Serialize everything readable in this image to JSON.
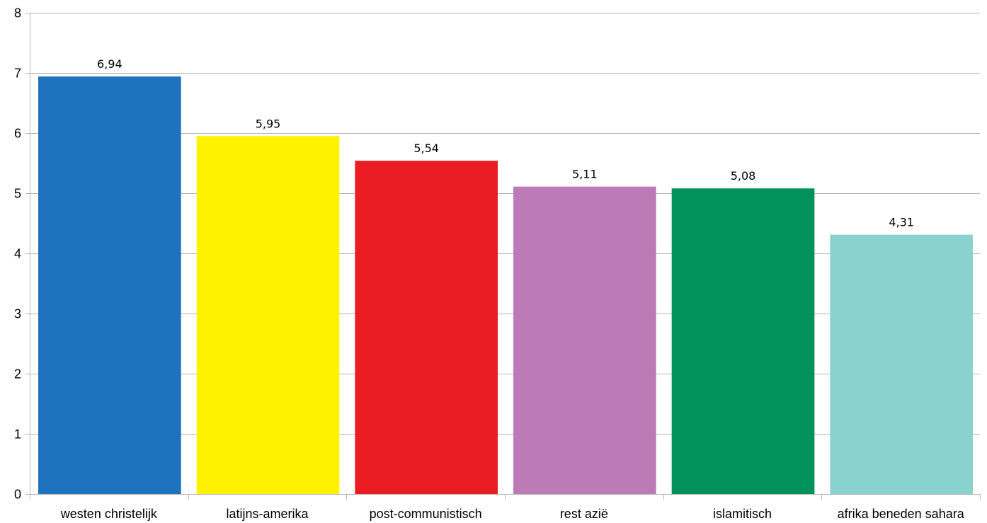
{
  "chart_data": {
    "type": "bar",
    "title": "",
    "xlabel": "",
    "ylabel": "",
    "categories": [
      "westen christelijk",
      "latijns-amerika",
      "post-communistisch",
      "rest azië",
      "islamitisch",
      "afrika beneden sahara"
    ],
    "values": [
      6.94,
      5.95,
      5.54,
      5.11,
      5.08,
      4.31
    ],
    "value_labels": [
      "6,94",
      "5,95",
      "5,54",
      "5,11",
      "5,08",
      "4,31"
    ],
    "colors": [
      "#1f72be",
      "#fff200",
      "#ec1c24",
      "#bc7bb6",
      "#00925a",
      "#8ad2ce"
    ],
    "ylim": [
      0,
      8
    ],
    "yticks": [
      0,
      1,
      2,
      3,
      4,
      5,
      6,
      7,
      8
    ],
    "grid": true,
    "legend": "none"
  }
}
